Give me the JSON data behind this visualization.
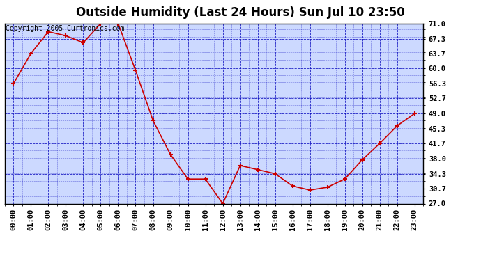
{
  "title": "Outside Humidity (Last 24 Hours) Sun Jul 10 23:50",
  "copyright": "Copyright 2005 Curtronics.com",
  "x_labels": [
    "00:00",
    "01:00",
    "02:00",
    "03:00",
    "04:00",
    "05:00",
    "06:00",
    "07:00",
    "08:00",
    "09:00",
    "10:00",
    "11:00",
    "12:00",
    "13:00",
    "14:00",
    "15:00",
    "16:00",
    "17:00",
    "18:00",
    "19:00",
    "20:00",
    "21:00",
    "22:00",
    "23:00"
  ],
  "x_values": [
    0,
    1,
    2,
    3,
    4,
    5,
    6,
    7,
    8,
    9,
    10,
    11,
    12,
    13,
    14,
    15,
    16,
    17,
    18,
    19,
    20,
    21,
    22,
    23
  ],
  "y_values": [
    56.3,
    63.7,
    69.0,
    68.0,
    66.3,
    71.0,
    71.0,
    59.5,
    47.3,
    39.0,
    33.0,
    33.0,
    27.0,
    36.3,
    35.3,
    34.3,
    31.3,
    30.3,
    31.0,
    33.0,
    37.7,
    41.7,
    46.0,
    49.0
  ],
  "ylim_min": 27.0,
  "ylim_max": 71.0,
  "yticks": [
    27.0,
    30.7,
    34.3,
    38.0,
    41.7,
    45.3,
    49.0,
    52.7,
    56.3,
    60.0,
    63.7,
    67.3,
    71.0
  ],
  "line_color": "#cc0000",
  "marker": "+",
  "marker_color": "#cc0000",
  "marker_size": 5,
  "plot_bg_color": "#ccd9ff",
  "fig_bg_color": "#ffffff",
  "grid_color": "#0000bb",
  "grid_style": "--",
  "title_fontsize": 12,
  "tick_fontsize": 7.5,
  "copyright_fontsize": 7,
  "frame_color": "#000000",
  "title_bg": "#ffffff"
}
